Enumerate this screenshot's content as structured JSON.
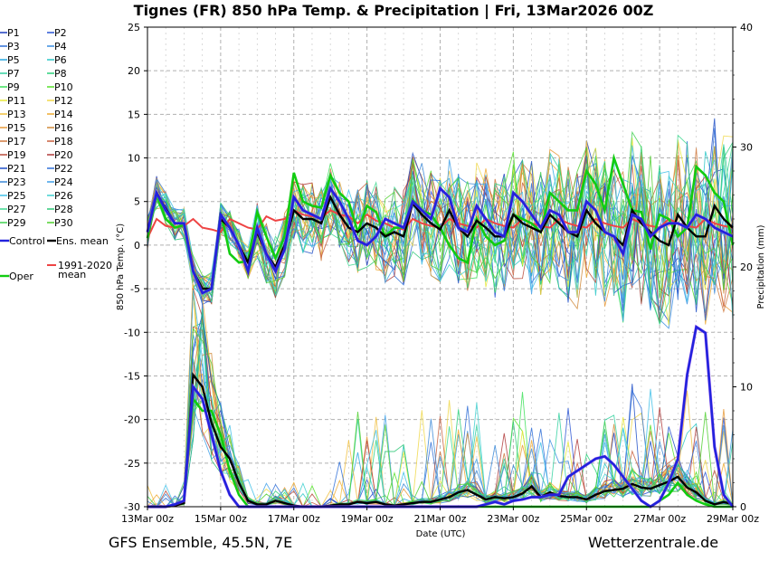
{
  "chart_data": {
    "type": "line",
    "title": "Tignes  (FR)  850 hPa Temp. & Precipitation | Fri, 13Mar2026 00Z",
    "ylabel": "850 hPa Temp. (°C)",
    "y2label": "Precipitation (mm)",
    "xlabel": "Date (UTC)",
    "ylim": [
      -30,
      25
    ],
    "y2lim": [
      0,
      40
    ],
    "xlim": [
      0,
      64
    ],
    "yticks": [
      "25",
      "20",
      "15",
      "10",
      "5",
      "0",
      "-5",
      "-10",
      "-15",
      "-20",
      "-25",
      "-30"
    ],
    "y2ticks": [
      "40",
      "30",
      "20",
      "10",
      "0"
    ],
    "xticks": [
      "13Mar 00z",
      "15Mar 00z",
      "17Mar 00z",
      "19Mar 00z",
      "21Mar 00z",
      "23Mar 00z",
      "25Mar 00z",
      "27Mar 00z",
      "29Mar 00z"
    ],
    "grid": true,
    "footer_left": "GFS Ensemble, 45.5N, 7E",
    "footer_right": "Wetterzentrale.de",
    "legend": [
      {
        "name": "P1",
        "color": "#1f3fbf"
      },
      {
        "name": "P2",
        "color": "#2a55d4"
      },
      {
        "name": "P3",
        "color": "#2f6fd6"
      },
      {
        "name": "P4",
        "color": "#3a8ee0"
      },
      {
        "name": "P5",
        "color": "#29a7e0"
      },
      {
        "name": "P6",
        "color": "#2cc7c7"
      },
      {
        "name": "P7",
        "color": "#32d1a0"
      },
      {
        "name": "P8",
        "color": "#2ad07a"
      },
      {
        "name": "P9",
        "color": "#3ee05a"
      },
      {
        "name": "P10",
        "color": "#55e02a"
      },
      {
        "name": "P11",
        "color": "#e8e83a"
      },
      {
        "name": "P12",
        "color": "#f0d84a"
      },
      {
        "name": "P13",
        "color": "#f0c040"
      },
      {
        "name": "P14",
        "color": "#eeaa33"
      },
      {
        "name": "P15",
        "color": "#e89a3a"
      },
      {
        "name": "P16",
        "color": "#d08a3a"
      },
      {
        "name": "P17",
        "color": "#d07a40"
      },
      {
        "name": "P18",
        "color": "#c86040"
      },
      {
        "name": "P19",
        "color": "#b84a3a"
      },
      {
        "name": "P20",
        "color": "#b03a3a"
      },
      {
        "name": "P21",
        "color": "#2050c8"
      },
      {
        "name": "P22",
        "color": "#3070d8"
      },
      {
        "name": "P23",
        "color": "#3a88d8"
      },
      {
        "name": "P24",
        "color": "#40a0e8"
      },
      {
        "name": "P25",
        "color": "#40c0e8"
      },
      {
        "name": "P26",
        "color": "#40d0d0"
      },
      {
        "name": "P27",
        "color": "#40d890"
      },
      {
        "name": "P28",
        "color": "#30c878"
      },
      {
        "name": "P29",
        "color": "#40d050"
      },
      {
        "name": "P30",
        "color": "#50d030"
      },
      {
        "name": "Control",
        "color": "#2222dd"
      },
      {
        "name": "Ens. mean",
        "color": "#000000"
      },
      {
        "name": "Oper",
        "color": "#11cc11"
      },
      {
        "name": "1991-2020 mean",
        "color": "#ee4444"
      }
    ],
    "series": [
      {
        "name": "Oper",
        "unit": "°C",
        "color": "#11cc11",
        "values": [
          0.8,
          5.8,
          3,
          2,
          2.3,
          -3,
          -5,
          -5,
          3.8,
          -1,
          -2,
          -1.8,
          3.8,
          1,
          -1.5,
          1,
          8.3,
          5,
          4.5,
          4.3,
          8,
          6,
          5,
          1.5,
          4.5,
          3.8,
          1,
          2,
          2,
          5.2,
          4,
          3.5,
          2,
          0,
          -1.5,
          -2,
          3,
          1,
          0,
          0.5,
          3.5,
          3,
          2.5,
          1.5,
          6,
          5,
          4,
          4,
          8.5,
          7,
          4,
          10,
          7,
          4,
          3.8,
          -0.5,
          3.5,
          3,
          1,
          2,
          9,
          8,
          6,
          5,
          0
        ]
      },
      {
        "name": "Control",
        "unit": "°C",
        "color": "#2222dd",
        "values": [
          1.5,
          6,
          4,
          2.5,
          2.5,
          -3,
          -5.5,
          -5,
          3.5,
          2,
          0,
          -3,
          2,
          -1,
          -3,
          -0.5,
          5.5,
          4,
          3.5,
          3,
          6.5,
          5,
          3,
          0.5,
          0,
          1,
          3,
          2.5,
          2,
          5,
          4,
          3,
          6.5,
          5.5,
          2,
          1.5,
          4.5,
          3,
          1.5,
          1,
          6,
          5,
          3.5,
          2,
          4,
          3.5,
          1.5,
          1.5,
          5,
          4,
          1.5,
          1,
          -1,
          3.5,
          3,
          1,
          2,
          2.5,
          2.5,
          2,
          3.5,
          3,
          2,
          1.5,
          1
        ]
      },
      {
        "name": "Ens. mean",
        "unit": "°C",
        "color": "#000000",
        "values": [
          1.5,
          6,
          4.2,
          2.5,
          2.5,
          -3,
          -5,
          -5,
          3,
          2,
          0,
          -2,
          1.5,
          -1,
          -2.5,
          0,
          4,
          3,
          3,
          2.5,
          5.5,
          3.5,
          2,
          1.5,
          2.5,
          2,
          1,
          1.5,
          1,
          4.8,
          3.5,
          2.5,
          1.8,
          4,
          2,
          1,
          2.8,
          2,
          1,
          1,
          3.5,
          2.5,
          2,
          1.5,
          3.5,
          2.5,
          1.5,
          1,
          4,
          2.5,
          1.5,
          1,
          0,
          4,
          2.5,
          1.5,
          0.5,
          0,
          3.5,
          2,
          1,
          1,
          4.5,
          3,
          2
        ]
      },
      {
        "name": "1991-2020 mean",
        "unit": "°C",
        "color": "#ee4444",
        "values": [
          0.8,
          3,
          2.2,
          2,
          2.2,
          3,
          2,
          1.8,
          1.5,
          3,
          2.5,
          2,
          1.8,
          3.3,
          2.8,
          3,
          4,
          3.5,
          3.3,
          3.1,
          4,
          3.5,
          3.3,
          2.5,
          3.5,
          2.8,
          2.5,
          2,
          1.8,
          3,
          2.5,
          2.2,
          2,
          3,
          2.5,
          2.2,
          2,
          3,
          2.5,
          2.2,
          2,
          3,
          2.5,
          2.2,
          2,
          3,
          2.5,
          2.2,
          2,
          3,
          2.5,
          2.2,
          2,
          3,
          2.5,
          2.2,
          2,
          3,
          2.5,
          2.2,
          2,
          3,
          2.5,
          2.2,
          2
        ]
      },
      {
        "name": "Control",
        "unit": "mm",
        "color": "#2222dd",
        "values": [
          0,
          0,
          0,
          0.2,
          0.5,
          10,
          9,
          6,
          3,
          1,
          0,
          0,
          0,
          0,
          0,
          0,
          0,
          0,
          0,
          0,
          0,
          0,
          0,
          0,
          0,
          0,
          0,
          0,
          0,
          0,
          0,
          0,
          0,
          0,
          0,
          0,
          0,
          0.2,
          0.4,
          0.2,
          0.5,
          0.6,
          0.8,
          0.8,
          1,
          1,
          2.5,
          3,
          3.5,
          4,
          4.2,
          3.5,
          2.5,
          1.5,
          0.5,
          0,
          0.5,
          2,
          4,
          11,
          15,
          14.5,
          5,
          1,
          0
        ]
      },
      {
        "name": "Ens. mean",
        "unit": "mm",
        "color": "#000000",
        "values": [
          0,
          0,
          0,
          0.1,
          0.3,
          11,
          10,
          7,
          5,
          4,
          2,
          0.5,
          0.2,
          0.2,
          0.5,
          0.3,
          0.1,
          0,
          0,
          0,
          0.1,
          0.2,
          0.2,
          0.4,
          0.3,
          0.4,
          0.2,
          0.1,
          0.2,
          0.3,
          0.4,
          0.4,
          0.6,
          0.8,
          1.2,
          1.4,
          1,
          0.6,
          0.8,
          0.7,
          0.8,
          1.1,
          1.7,
          0.8,
          1.2,
          0.9,
          0.8,
          0.8,
          0.6,
          1,
          1.3,
          1.4,
          1.5,
          1.9,
          1.6,
          1.5,
          1.8,
          2.1,
          2.5,
          1.6,
          1.2,
          0.5,
          0.2,
          0.4,
          0.2
        ]
      },
      {
        "name": "Oper",
        "unit": "mm",
        "color": "#11cc11",
        "values": [
          0,
          0,
          0,
          0.1,
          0.5,
          9,
          8,
          8,
          6,
          3,
          1,
          0,
          0,
          0,
          0,
          0,
          0,
          0,
          0,
          0,
          0,
          0,
          0,
          0,
          0,
          0,
          0,
          0,
          0,
          0,
          0,
          0,
          0,
          0,
          0,
          0,
          0,
          0,
          0,
          0,
          0,
          0,
          0,
          0,
          0,
          0,
          0,
          0,
          0,
          0,
          0,
          0,
          0,
          0,
          0,
          0,
          0.5,
          1,
          2,
          1,
          0.5,
          0.2,
          0,
          0,
          0
        ]
      }
    ]
  }
}
